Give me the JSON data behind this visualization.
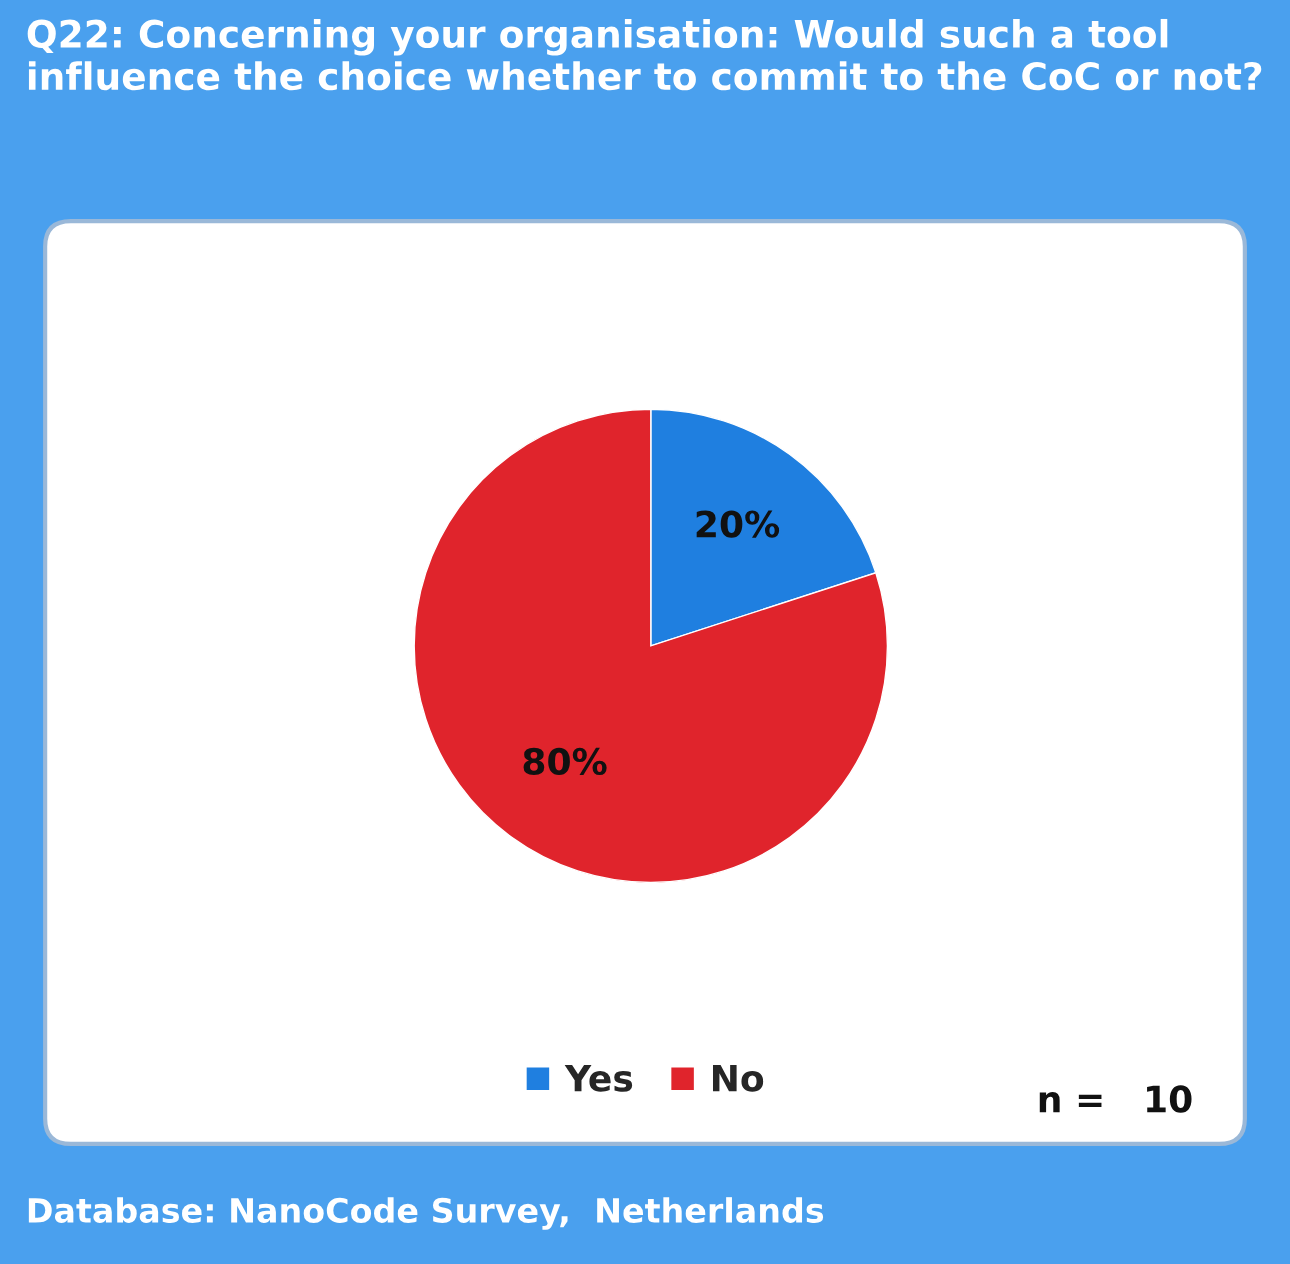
{
  "chart_data": {
    "type": "pie",
    "title": "Q22: Concerning your organisation: Would such a tool influence the choice whether to commit to the CoC or not?",
    "categories": [
      "Yes",
      "No"
    ],
    "values": [
      20,
      80
    ],
    "colors": [
      "#1f7fe0",
      "#e0242c"
    ],
    "data_labels": true,
    "value_labels": [
      "20%",
      "80%"
    ],
    "legend": "bottom",
    "annotations": [
      "n =   10",
      "Database: NanoCode Survey,  Netherlands"
    ]
  }
}
